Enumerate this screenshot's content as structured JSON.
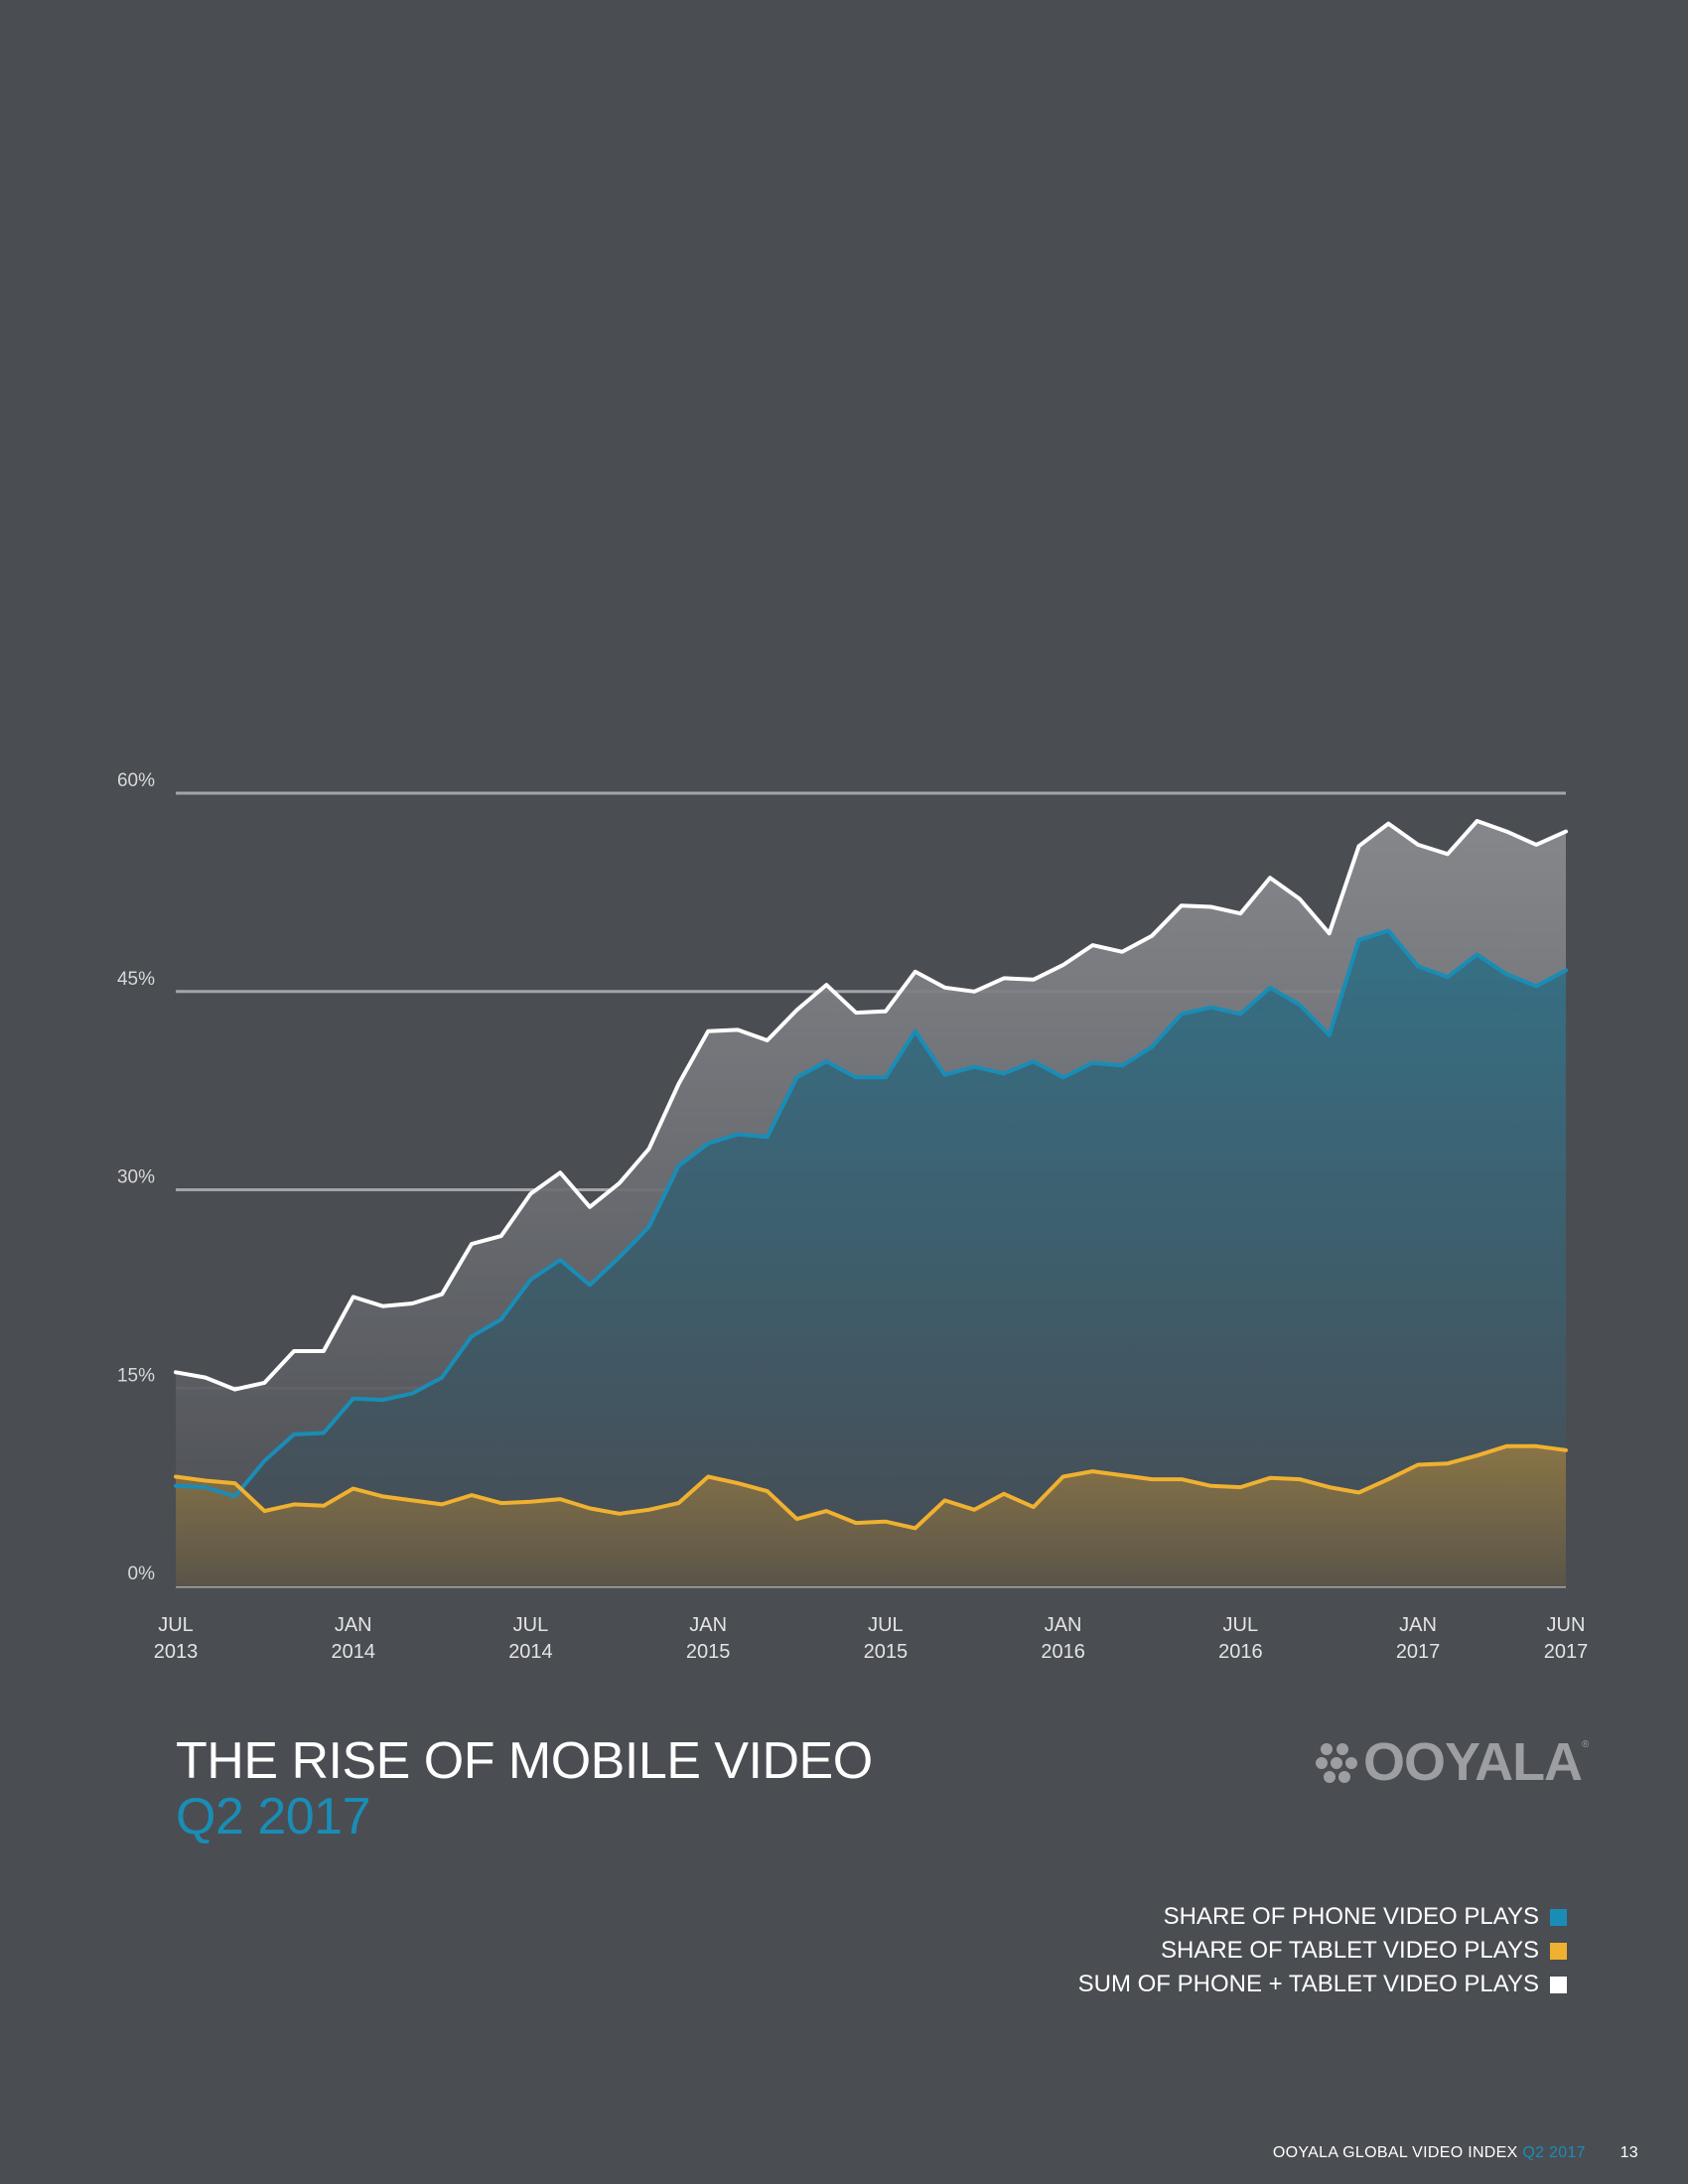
{
  "chart_data": {
    "type": "area",
    "y_ticks": [
      "0%",
      "15%",
      "30%",
      "45%",
      "60%"
    ],
    "ylim": [
      0,
      60
    ],
    "grid": true,
    "x_ticks": [
      {
        "month": "JUL",
        "year": "2013"
      },
      {
        "month": "JAN",
        "year": "2014"
      },
      {
        "month": "JUL",
        "year": "2014"
      },
      {
        "month": "JAN",
        "year": "2015"
      },
      {
        "month": "JUL",
        "year": "2015"
      },
      {
        "month": "JAN",
        "year": "2016"
      },
      {
        "month": "JUL",
        "year": "2016"
      },
      {
        "month": "JAN",
        "year": "2017"
      },
      {
        "month": "JUN",
        "year": "2017"
      }
    ],
    "x_start": "2013-07",
    "x_end": "2017-06",
    "series": [
      {
        "name": "SUM OF PHONE + TABLET VIDEO PLAYS",
        "color": "#ffffff",
        "values": [
          16.2,
          15.8,
          14.9,
          15.4,
          17.8,
          17.8,
          21.9,
          21.2,
          21.4,
          22.1,
          25.9,
          26.5,
          29.7,
          31.3,
          28.7,
          30.5,
          33.1,
          38.0,
          42.0,
          42.1,
          41.3,
          43.6,
          45.5,
          43.4,
          43.5,
          46.5,
          45.3,
          45.0,
          46.0,
          45.9,
          47.0,
          48.5,
          48.0,
          49.2,
          51.5,
          51.4,
          50.9,
          53.6,
          52.0,
          49.4,
          56.0,
          57.7,
          56.1,
          55.4,
          57.9,
          57.1,
          56.1,
          57.1
        ]
      },
      {
        "name": "SHARE OF PHONE VIDEO PLAYS",
        "color": "#1a8db7",
        "values": [
          7.6,
          7.5,
          6.8,
          9.5,
          11.5,
          11.6,
          14.2,
          14.1,
          14.6,
          15.8,
          18.9,
          20.2,
          23.2,
          24.7,
          22.8,
          24.9,
          27.2,
          31.8,
          33.5,
          34.2,
          34.0,
          38.5,
          39.7,
          38.5,
          38.5,
          42.0,
          38.7,
          39.3,
          38.8,
          39.7,
          38.5,
          39.6,
          39.4,
          40.8,
          43.3,
          43.8,
          43.3,
          45.3,
          44.0,
          41.7,
          48.9,
          49.6,
          46.9,
          46.1,
          47.8,
          46.3,
          45.4,
          46.6
        ]
      },
      {
        "name": "SHARE OF TABLET VIDEO PLAYS",
        "color": "#f0b030",
        "values": [
          8.3,
          8.0,
          7.8,
          5.7,
          6.2,
          6.1,
          7.4,
          6.8,
          6.5,
          6.2,
          6.9,
          6.3,
          6.4,
          6.6,
          5.9,
          5.5,
          5.8,
          6.3,
          8.3,
          7.8,
          7.2,
          5.1,
          5.7,
          4.8,
          4.9,
          4.4,
          6.5,
          5.8,
          7.0,
          6.0,
          8.3,
          8.7,
          8.4,
          8.1,
          8.1,
          7.6,
          7.5,
          8.2,
          8.1,
          7.5,
          7.1,
          8.1,
          9.2,
          9.3,
          9.9,
          10.6,
          10.6,
          10.3
        ]
      }
    ]
  },
  "title": "THE RISE OF MOBILE VIDEO",
  "subtitle": "Q2 2017",
  "logo_text": "OOYALA",
  "logo_reg": "®",
  "legend": [
    {
      "label": "SHARE OF PHONE VIDEO PLAYS",
      "color": "#1a8db7"
    },
    {
      "label": "SHARE OF TABLET VIDEO PLAYS",
      "color": "#f0b030"
    },
    {
      "label": "SUM OF PHONE + TABLET VIDEO PLAYS",
      "color": "#ffffff"
    }
  ],
  "footer": {
    "text": "OOYALA GLOBAL VIDEO INDEX",
    "accent": "Q2 2017",
    "page": "13"
  }
}
